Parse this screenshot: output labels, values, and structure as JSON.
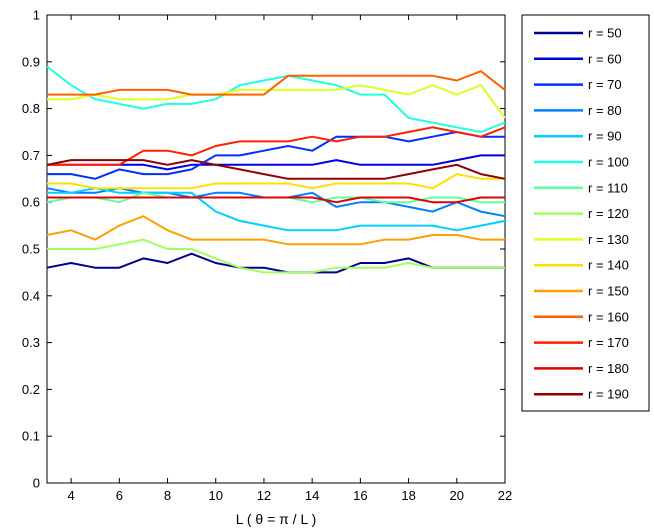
{
  "chart_data": {
    "type": "line",
    "xlabel": "L ( θ = π / L )",
    "ylabel": "",
    "xlim": [
      3,
      22
    ],
    "ylim": [
      0,
      1
    ],
    "xticks": [
      4,
      6,
      8,
      10,
      12,
      14,
      16,
      18,
      20,
      22
    ],
    "yticks": [
      0,
      0.1,
      0.2,
      0.3,
      0.4,
      0.5,
      0.6,
      0.7,
      0.8,
      0.9,
      1
    ],
    "legend_position": "outside-right",
    "x": [
      3,
      4,
      5,
      6,
      7,
      8,
      9,
      10,
      11,
      12,
      13,
      14,
      15,
      16,
      17,
      18,
      19,
      20,
      21,
      22
    ],
    "series": [
      {
        "name": "r = 50",
        "color": "#00008f",
        "values": [
          0.46,
          0.47,
          0.46,
          0.46,
          0.48,
          0.47,
          0.49,
          0.47,
          0.46,
          0.46,
          0.45,
          0.45,
          0.45,
          0.47,
          0.47,
          0.48,
          0.46,
          0.46,
          0.46,
          0.46
        ]
      },
      {
        "name": "r = 60",
        "color": "#0000df",
        "values": [
          0.68,
          0.68,
          0.68,
          0.68,
          0.68,
          0.67,
          0.68,
          0.68,
          0.68,
          0.68,
          0.68,
          0.68,
          0.69,
          0.68,
          0.68,
          0.68,
          0.68,
          0.69,
          0.7,
          0.7
        ]
      },
      {
        "name": "r = 70",
        "color": "#0030ff",
        "values": [
          0.66,
          0.66,
          0.65,
          0.67,
          0.66,
          0.66,
          0.67,
          0.7,
          0.7,
          0.71,
          0.72,
          0.71,
          0.74,
          0.74,
          0.74,
          0.73,
          0.74,
          0.75,
          0.74,
          0.74
        ]
      },
      {
        "name": "r = 80",
        "color": "#0080ff",
        "values": [
          0.63,
          0.62,
          0.62,
          0.63,
          0.62,
          0.62,
          0.61,
          0.62,
          0.62,
          0.61,
          0.61,
          0.62,
          0.59,
          0.6,
          0.6,
          0.59,
          0.58,
          0.6,
          0.58,
          0.57
        ]
      },
      {
        "name": "r = 90",
        "color": "#00cfff",
        "values": [
          0.62,
          0.62,
          0.63,
          0.62,
          0.62,
          0.62,
          0.62,
          0.58,
          0.56,
          0.55,
          0.54,
          0.54,
          0.54,
          0.55,
          0.55,
          0.55,
          0.55,
          0.54,
          0.55,
          0.56
        ]
      },
      {
        "name": "r = 100",
        "color": "#20ffdf",
        "values": [
          0.89,
          0.85,
          0.82,
          0.81,
          0.8,
          0.81,
          0.81,
          0.82,
          0.85,
          0.86,
          0.87,
          0.86,
          0.85,
          0.83,
          0.83,
          0.78,
          0.77,
          0.76,
          0.75,
          0.77
        ]
      },
      {
        "name": "r = 110",
        "color": "#60ff9f",
        "values": [
          0.6,
          0.61,
          0.61,
          0.6,
          0.62,
          0.61,
          0.61,
          0.61,
          0.61,
          0.61,
          0.61,
          0.6,
          0.61,
          0.61,
          0.6,
          0.6,
          0.61,
          0.61,
          0.6,
          0.6
        ]
      },
      {
        "name": "r = 120",
        "color": "#9fff60",
        "values": [
          0.5,
          0.5,
          0.5,
          0.51,
          0.52,
          0.5,
          0.5,
          0.48,
          0.46,
          0.45,
          0.45,
          0.45,
          0.46,
          0.46,
          0.46,
          0.47,
          0.46,
          0.46,
          0.46,
          0.46
        ]
      },
      {
        "name": "r = 130",
        "color": "#dfff20",
        "values": [
          0.82,
          0.82,
          0.83,
          0.82,
          0.82,
          0.82,
          0.83,
          0.83,
          0.84,
          0.84,
          0.84,
          0.84,
          0.84,
          0.85,
          0.84,
          0.83,
          0.85,
          0.83,
          0.85,
          0.78
        ]
      },
      {
        "name": "r = 140",
        "color": "#ffdf00",
        "values": [
          0.64,
          0.64,
          0.63,
          0.63,
          0.63,
          0.63,
          0.63,
          0.64,
          0.64,
          0.64,
          0.64,
          0.63,
          0.64,
          0.64,
          0.64,
          0.64,
          0.63,
          0.66,
          0.65,
          0.65
        ]
      },
      {
        "name": "r = 150",
        "color": "#ff9f00",
        "values": [
          0.53,
          0.54,
          0.52,
          0.55,
          0.57,
          0.54,
          0.52,
          0.52,
          0.52,
          0.52,
          0.51,
          0.51,
          0.51,
          0.51,
          0.52,
          0.52,
          0.53,
          0.53,
          0.52,
          0.52
        ]
      },
      {
        "name": "r = 160",
        "color": "#ff6000",
        "values": [
          0.83,
          0.83,
          0.83,
          0.84,
          0.84,
          0.84,
          0.83,
          0.83,
          0.83,
          0.83,
          0.87,
          0.87,
          0.87,
          0.87,
          0.87,
          0.87,
          0.87,
          0.86,
          0.88,
          0.84
        ]
      },
      {
        "name": "r = 170",
        "color": "#ff2000",
        "values": [
          0.68,
          0.68,
          0.68,
          0.68,
          0.71,
          0.71,
          0.7,
          0.72,
          0.73,
          0.73,
          0.73,
          0.74,
          0.73,
          0.74,
          0.74,
          0.75,
          0.76,
          0.75,
          0.74,
          0.76
        ]
      },
      {
        "name": "r = 180",
        "color": "#df0000",
        "values": [
          0.61,
          0.61,
          0.61,
          0.61,
          0.61,
          0.61,
          0.61,
          0.61,
          0.61,
          0.61,
          0.61,
          0.61,
          0.6,
          0.61,
          0.61,
          0.61,
          0.6,
          0.6,
          0.61,
          0.61
        ]
      },
      {
        "name": "r = 190",
        "color": "#8f0000",
        "values": [
          0.68,
          0.69,
          0.69,
          0.69,
          0.69,
          0.68,
          0.69,
          0.68,
          0.67,
          0.66,
          0.65,
          0.65,
          0.65,
          0.65,
          0.65,
          0.66,
          0.67,
          0.68,
          0.66,
          0.65
        ]
      }
    ]
  }
}
